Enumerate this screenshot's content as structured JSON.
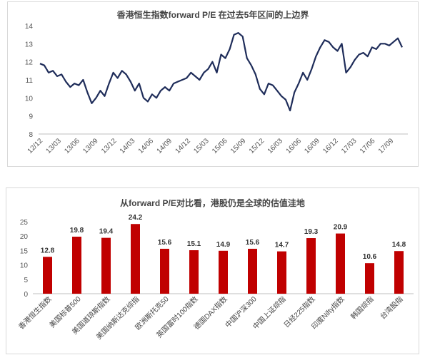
{
  "chart_data": [
    {
      "type": "line",
      "title": "香港恒生指数forward  P/E 在过去5年区间的上边界",
      "xlabel": "",
      "ylabel": "",
      "ylim": [
        8,
        14
      ],
      "yticks": [
        8,
        9,
        10,
        11,
        12,
        13,
        14
      ],
      "xticks": [
        "12/12",
        "13/03",
        "13/06",
        "13/09",
        "13/12",
        "14/03",
        "14/06",
        "14/09",
        "14/12",
        "15/03",
        "15/06",
        "15/09",
        "15/12",
        "16/03",
        "16/06",
        "16/09",
        "16/12",
        "17/03",
        "17/06",
        "17/09"
      ],
      "grid": false,
      "line_color": "#1f2d5a",
      "series": [
        {
          "name": "",
          "x": [
            "12/12",
            "12/12",
            "13/01",
            "13/02",
            "13/02",
            "13/03",
            "13/03",
            "13/04",
            "13/04",
            "13/05",
            "13/05",
            "13/06",
            "13/06",
            "13/07",
            "13/07",
            "13/08",
            "13/08",
            "13/09",
            "13/09",
            "13/10",
            "13/10",
            "13/11",
            "13/12",
            "13/12",
            "14/01",
            "14/01",
            "14/02",
            "14/02",
            "14/03",
            "14/04",
            "14/04",
            "14/05",
            "14/06",
            "14/06",
            "14/07",
            "14/08",
            "14/08",
            "14/09",
            "14/10",
            "14/11",
            "14/12",
            "14/12",
            "15/01",
            "15/02",
            "15/03",
            "15/04",
            "15/04",
            "15/05",
            "15/06",
            "15/07",
            "15/07",
            "15/08",
            "15/09",
            "15/10",
            "15/11",
            "15/12",
            "15/12",
            "16/01",
            "16/01",
            "16/02",
            "16/03",
            "16/04",
            "16/05",
            "16/06",
            "16/07",
            "16/08",
            "16/09",
            "16/09",
            "16/10",
            "16/11",
            "16/11",
            "16/12",
            "17/01",
            "17/02",
            "17/03",
            "17/04",
            "17/05",
            "17/06",
            "17/07",
            "17/08",
            "17/09",
            "17/10",
            "17/11",
            "17/11",
            "17/12"
          ],
          "values": [
            11.9,
            11.8,
            11.4,
            11.5,
            11.2,
            11.3,
            10.9,
            10.6,
            10.8,
            10.7,
            11.0,
            10.3,
            9.7,
            10.0,
            10.4,
            10.1,
            10.8,
            11.4,
            11.1,
            11.5,
            11.3,
            10.9,
            10.4,
            10.8,
            10.0,
            9.8,
            10.2,
            10.0,
            10.4,
            10.6,
            10.4,
            10.8,
            10.9,
            11.0,
            11.1,
            11.4,
            11.2,
            11.0,
            11.4,
            11.6,
            12.0,
            11.4,
            12.4,
            12.2,
            12.7,
            13.5,
            13.6,
            13.4,
            12.2,
            11.8,
            11.3,
            10.5,
            10.2,
            10.8,
            10.7,
            10.4,
            10.1,
            9.9,
            9.3,
            10.3,
            10.8,
            11.4,
            11.0,
            11.6,
            12.3,
            12.8,
            13.2,
            13.1,
            12.8,
            12.6,
            13.0,
            11.4,
            11.7,
            12.1,
            12.4,
            12.5,
            12.3,
            12.8,
            12.7,
            13.0,
            13.0,
            12.9,
            13.1,
            13.3,
            12.8
          ]
        }
      ]
    },
    {
      "type": "bar",
      "title": "从forward  P/E对比看，港股仍是全球的估值洼地",
      "xlabel": "",
      "ylabel": "",
      "ylim": [
        0,
        25
      ],
      "yticks": [
        0,
        5,
        10,
        15,
        20,
        25
      ],
      "grid": false,
      "bar_color": "#c00000",
      "categories": [
        "香港恒生指数",
        "美国标普500",
        "美国道琼斯指数",
        "美国纳斯达克综指",
        "欧洲斯托克50",
        "英国富时100指数",
        "德国DAX指数",
        "中国沪深300",
        "中国上证综指",
        "日经225指数",
        "印度Nifty指数",
        "韩国综指",
        "台湾股指"
      ],
      "values": [
        12.8,
        19.8,
        19.4,
        24.2,
        15.6,
        15.1,
        14.9,
        15.6,
        14.7,
        19.3,
        20.9,
        10.6,
        14.8
      ]
    }
  ]
}
